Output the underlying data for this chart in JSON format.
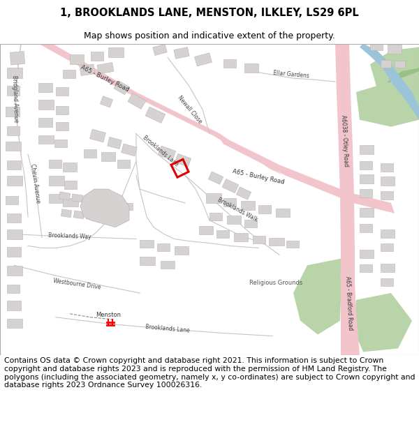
{
  "title": "1, BROOKLANDS LANE, MENSTON, ILKLEY, LS29 6PL",
  "subtitle": "Map shows position and indicative extent of the property.",
  "copyright_text": "Contains OS data © Crown copyright and database right 2021. This information is subject to Crown copyright and database rights 2023 and is reproduced with the permission of HM Land Registry. The polygons (including the associated geometry, namely x, y co-ordinates) are subject to Crown copyright and database rights 2023 Ordnance Survey 100026316.",
  "title_fontsize": 10.5,
  "subtitle_fontsize": 9,
  "copyright_fontsize": 7.8,
  "map_bg_color": "#f8f8f8",
  "road_major_color": "#f2c4cc",
  "road_major_edge": "#e8a0aa",
  "road_minor_color": "#e8e4e4",
  "building_color": "#d6d2d2",
  "building_edge_color": "#b8b4b4",
  "green_color": "#b8d4a8",
  "green2_color": "#98c088",
  "water_color": "#9cc4d8",
  "plot_color": "#dd0000",
  "road_text_color": "#444444",
  "fig_bg_color": "#ffffff",
  "map_border_color": "#aaaaaa",
  "title_color": "#000000",
  "line_color": "#c8c4c4"
}
